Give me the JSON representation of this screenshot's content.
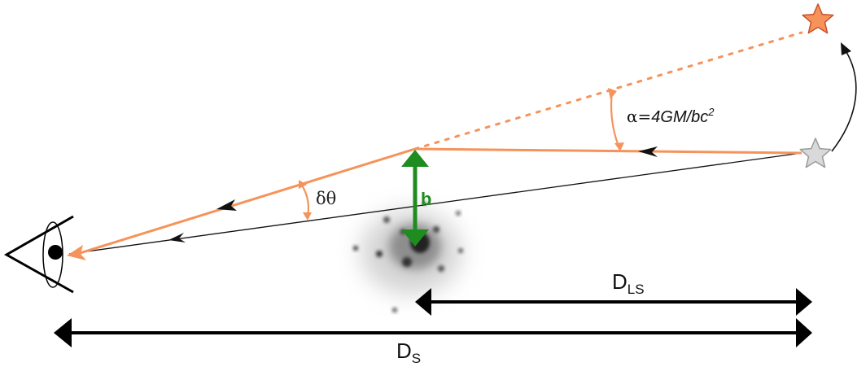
{
  "labels": {
    "deflection_prefix": "α=",
    "deflection_formula": "4GM/bc",
    "deflection_exponent": "2",
    "apparent_shift": "δθ",
    "impact_parameter": "b",
    "lens_source_distance_main": "D",
    "lens_source_distance_sub": "LS",
    "source_distance_main": "D",
    "source_distance_sub": "S"
  },
  "colors": {
    "light_ray": "#f5935a",
    "true_ray": "#111111",
    "impact_arrow": "#1e8c1e",
    "apparent_star_fill": "#f5935a",
    "apparent_star_stroke": "#c8502a",
    "true_star_fill": "#d9d9d9",
    "true_star_stroke": "#9a9a9a",
    "distance_arrows": "#000000"
  },
  "icons": {
    "observer": "eye-icon",
    "lens": "galaxy-icon",
    "true_source": "star-icon",
    "apparent_source": "star-icon"
  }
}
